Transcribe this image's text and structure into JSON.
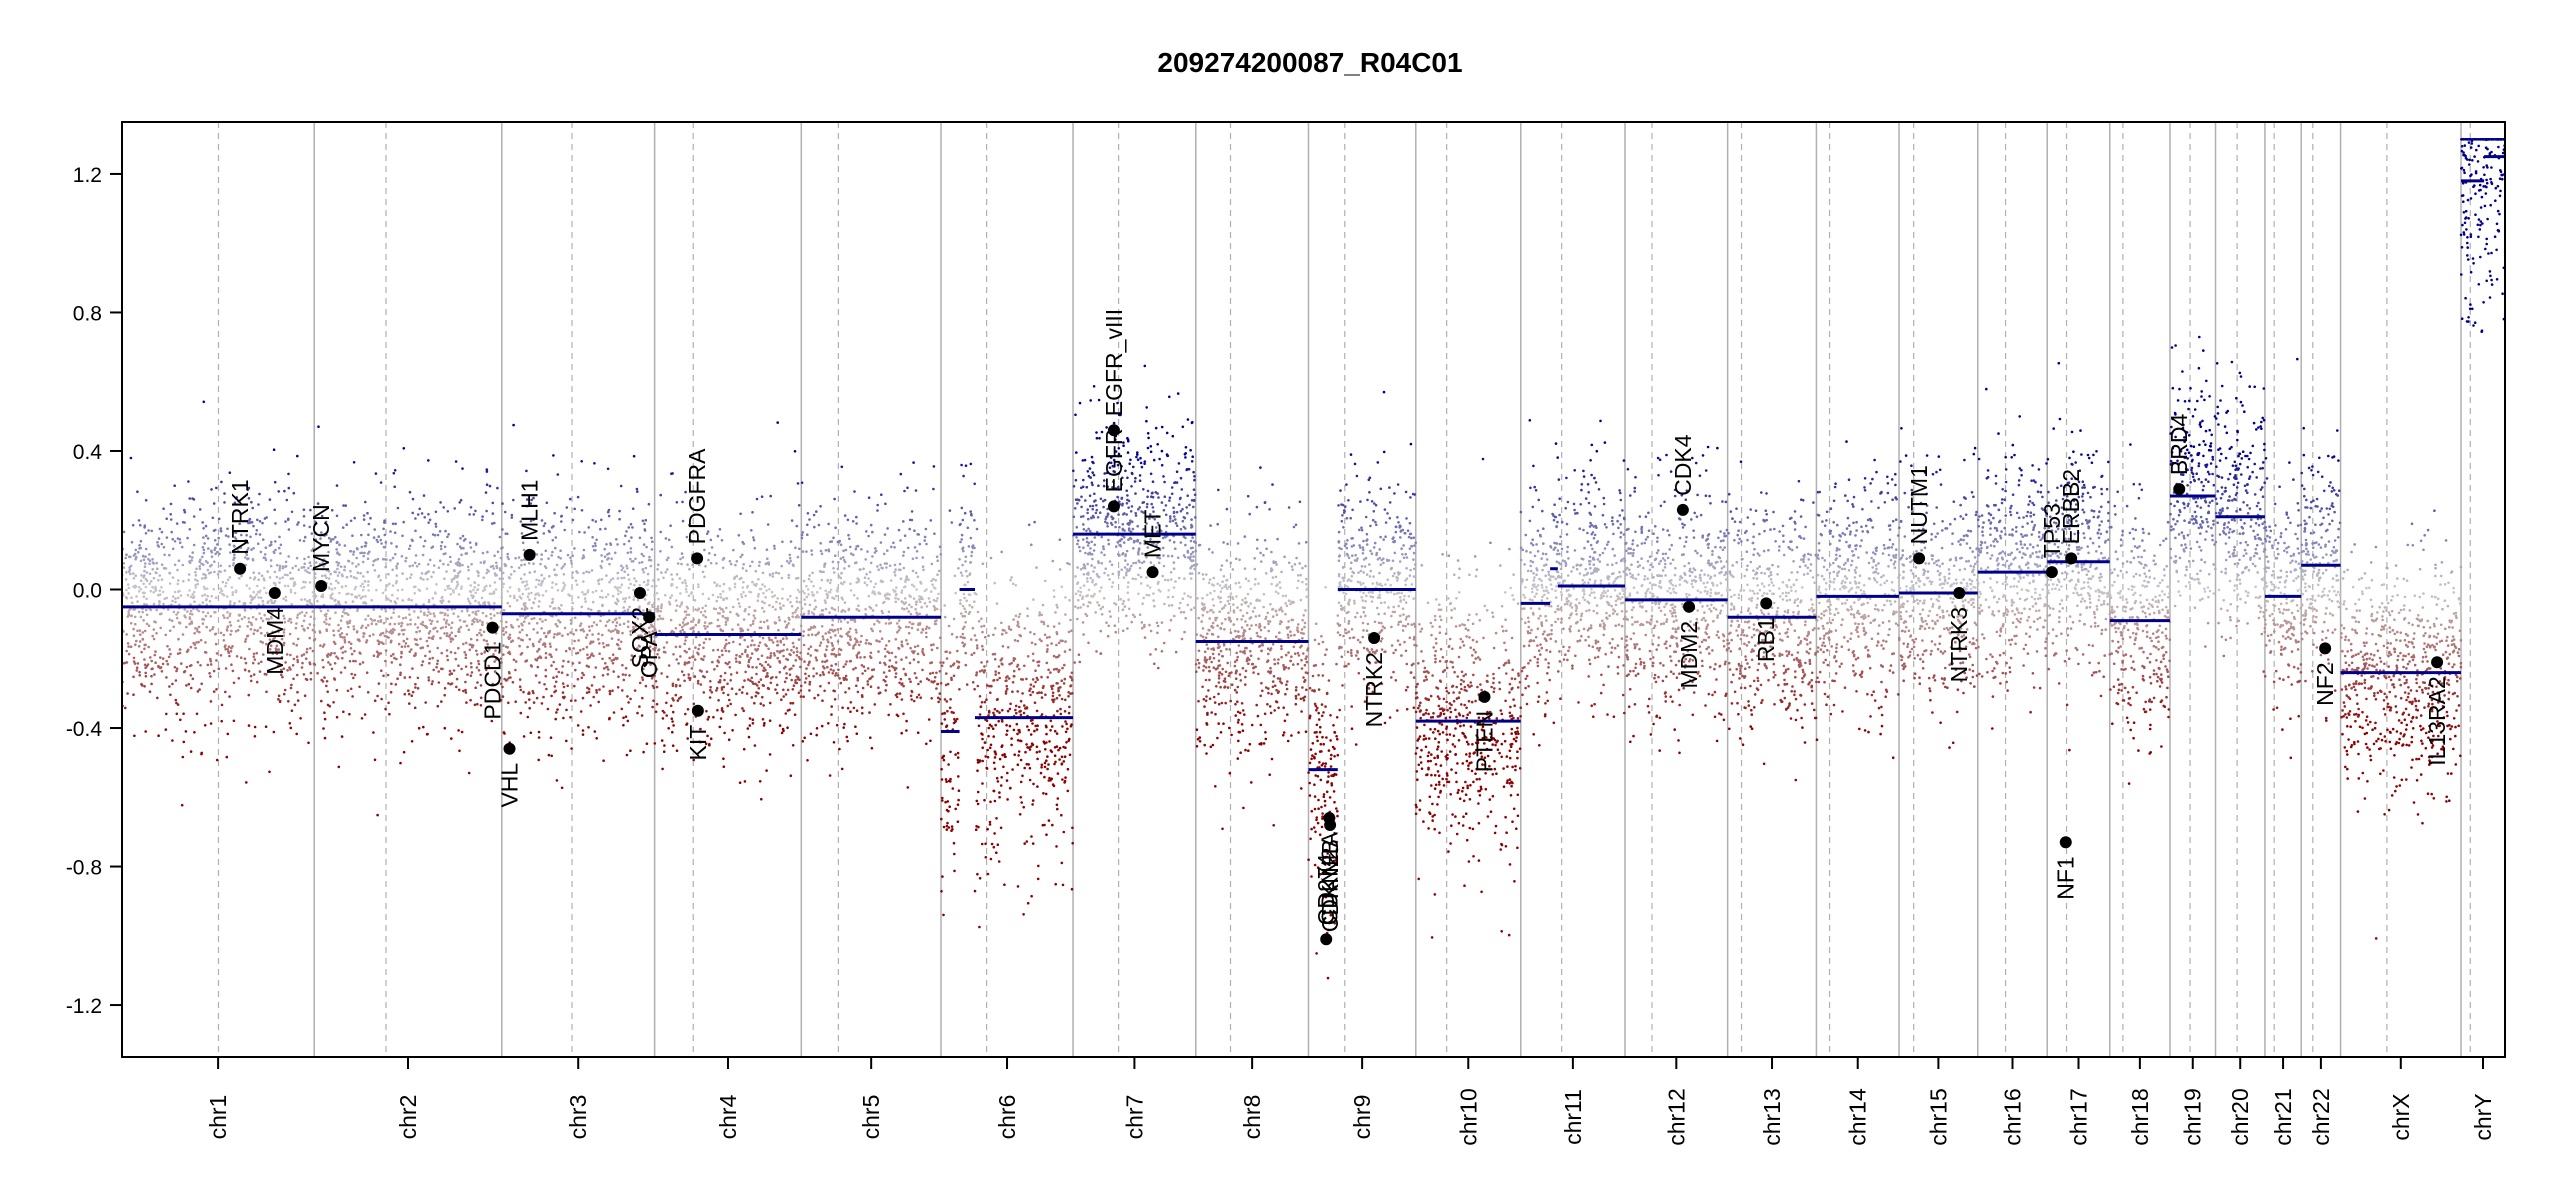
{
  "chart_data": {
    "type": "scatter",
    "title": "209274200087_R04C01",
    "xlabel": "",
    "ylabel": "",
    "ylim": [
      -1.35,
      1.35
    ],
    "yticks": [
      -1.2,
      -0.8,
      -0.4,
      0.0,
      0.4,
      0.8,
      1.2
    ],
    "ytick_labels": [
      "-1.2",
      "-0.8",
      "-0.4",
      "0.0",
      "0.4",
      "0.8",
      "1.2"
    ],
    "grid": false,
    "colors": {
      "gain": "#00008b",
      "loss": "#8b0000",
      "neutral": "#bfbfbf",
      "segment": "#00008b",
      "boundary": "#b0b0b0",
      "centromere": "#b0b0b0",
      "gene_marker": "#000000",
      "axis": "#000000"
    },
    "chromosomes": [
      {
        "name": "chr1",
        "start": 0,
        "end": 249.0,
        "centromere": 125.0
      },
      {
        "name": "chr2",
        "start": 249.0,
        "end": 492.0,
        "centromere": 342.0
      },
      {
        "name": "chr3",
        "start": 492.0,
        "end": 690.0,
        "centromere": 583.0
      },
      {
        "name": "chr4",
        "start": 690.0,
        "end": 880.0,
        "centromere": 740.0
      },
      {
        "name": "chr5",
        "start": 880.0,
        "end": 1061.0,
        "centromere": 928.0
      },
      {
        "name": "chr6",
        "start": 1061.0,
        "end": 1232.0,
        "centromere": 1120.0
      },
      {
        "name": "chr7",
        "start": 1232.0,
        "end": 1391.0,
        "centromere": 1291.0
      },
      {
        "name": "chr8",
        "start": 1391.0,
        "end": 1537.0,
        "centromere": 1436.0
      },
      {
        "name": "chr9",
        "start": 1537.0,
        "end": 1676.0,
        "centromere": 1584.0
      },
      {
        "name": "chr10",
        "start": 1676.0,
        "end": 1812.0,
        "centromere": 1716.0
      },
      {
        "name": "chr11",
        "start": 1812.0,
        "end": 1947.0,
        "centromere": 1865.0
      },
      {
        "name": "chr12",
        "start": 1947.0,
        "end": 2080.0,
        "centromere": 1982.0
      },
      {
        "name": "chr13",
        "start": 2080.0,
        "end": 2195.0,
        "centromere": 2098.0
      },
      {
        "name": "chr14",
        "start": 2195.0,
        "end": 2302.0,
        "centromere": 2212.0
      },
      {
        "name": "chr15",
        "start": 2302.0,
        "end": 2404.0,
        "centromere": 2321.0
      },
      {
        "name": "chr16",
        "start": 2404.0,
        "end": 2494.0,
        "centromere": 2440.0
      },
      {
        "name": "chr17",
        "start": 2494.0,
        "end": 2575.0,
        "centromere": 2519.0
      },
      {
        "name": "chr18",
        "start": 2575.0,
        "end": 2653.0,
        "centromere": 2592.0
      },
      {
        "name": "chr19",
        "start": 2653.0,
        "end": 2712.0,
        "centromere": 2679.0
      },
      {
        "name": "chr20",
        "start": 2712.0,
        "end": 2776.0,
        "centromere": 2740.0
      },
      {
        "name": "chr21",
        "start": 2776.0,
        "end": 2823.0,
        "centromere": 2788.0
      },
      {
        "name": "chr22",
        "start": 2823.0,
        "end": 2874.0,
        "centromere": 2838.0
      },
      {
        "name": "chrX",
        "start": 2874.0,
        "end": 3030.0,
        "centromere": 2934.0
      },
      {
        "name": "chrY",
        "start": 3030.0,
        "end": 3087.0,
        "centromere": 3042.0
      }
    ],
    "segments": [
      {
        "chr": "chr1",
        "x0": 0,
        "x1": 249,
        "value": -0.05
      },
      {
        "chr": "chr2",
        "x0": 249,
        "x1": 492,
        "value": -0.05
      },
      {
        "chr": "chr3",
        "x0": 492,
        "x1": 690,
        "value": -0.07
      },
      {
        "chr": "chr4",
        "x0": 690,
        "x1": 880,
        "value": -0.13
      },
      {
        "chr": "chr5",
        "x0": 880,
        "x1": 1061,
        "value": -0.08
      },
      {
        "chr": "chr6",
        "x0": 1061,
        "x1": 1085,
        "value": -0.41
      },
      {
        "chr": "chr6",
        "x0": 1085,
        "x1": 1105,
        "value": 0.0
      },
      {
        "chr": "chr6",
        "x0": 1105,
        "x1": 1232,
        "value": -0.37
      },
      {
        "chr": "chr7",
        "x0": 1232,
        "x1": 1391,
        "value": 0.16
      },
      {
        "chr": "chr8",
        "x0": 1391,
        "x1": 1537,
        "value": -0.15
      },
      {
        "chr": "chr9",
        "x0": 1537,
        "x1": 1575,
        "value": -0.52
      },
      {
        "chr": "chr9",
        "x0": 1575,
        "x1": 1676,
        "value": 0.0
      },
      {
        "chr": "chr10",
        "x0": 1676,
        "x1": 1812,
        "value": -0.38
      },
      {
        "chr": "chr11",
        "x0": 1812,
        "x1": 1850,
        "value": -0.04
      },
      {
        "chr": "chr11",
        "x0": 1850,
        "x1": 1860,
        "value": 0.06
      },
      {
        "chr": "chr11",
        "x0": 1860,
        "x1": 1947,
        "value": 0.01
      },
      {
        "chr": "chr12",
        "x0": 1947,
        "x1": 2080,
        "value": -0.03
      },
      {
        "chr": "chr13",
        "x0": 2080,
        "x1": 2195,
        "value": -0.08
      },
      {
        "chr": "chr14",
        "x0": 2195,
        "x1": 2302,
        "value": -0.02
      },
      {
        "chr": "chr15",
        "x0": 2302,
        "x1": 2404,
        "value": -0.01
      },
      {
        "chr": "chr16",
        "x0": 2404,
        "x1": 2494,
        "value": 0.05
      },
      {
        "chr": "chr17",
        "x0": 2494,
        "x1": 2575,
        "value": 0.08
      },
      {
        "chr": "chr18",
        "x0": 2575,
        "x1": 2653,
        "value": -0.09
      },
      {
        "chr": "chr19",
        "x0": 2653,
        "x1": 2712,
        "value": 0.27
      },
      {
        "chr": "chr20",
        "x0": 2712,
        "x1": 2776,
        "value": 0.21
      },
      {
        "chr": "chr21",
        "x0": 2776,
        "x1": 2823,
        "value": -0.02
      },
      {
        "chr": "chr22",
        "x0": 2823,
        "x1": 2874,
        "value": 0.07
      },
      {
        "chr": "chrX",
        "x0": 2874,
        "x1": 3030,
        "value": -0.24
      },
      {
        "chr": "chrY",
        "x0": 3030,
        "x1": 3060,
        "value": 1.18
      },
      {
        "chr": "chrY",
        "x0": 3060,
        "x1": 3087,
        "value": 1.25
      }
    ],
    "genes": [
      {
        "name": "NTRK1",
        "x": 153,
        "y": 0.06,
        "label_pos": "above"
      },
      {
        "name": "MDM4",
        "x": 198,
        "y": -0.01,
        "label_pos": "below"
      },
      {
        "name": "MYCN",
        "x": 258,
        "y": 0.01,
        "label_pos": "above"
      },
      {
        "name": "PDCD1",
        "x": 480,
        "y": -0.11,
        "label_pos": "below"
      },
      {
        "name": "VHL",
        "x": 502,
        "y": -0.46,
        "label_pos": "below"
      },
      {
        "name": "MLH1",
        "x": 528,
        "y": 0.1,
        "label_pos": "above"
      },
      {
        "name": "SOX2",
        "x": 671,
        "y": -0.01,
        "label_pos": "below"
      },
      {
        "name": "OPA",
        "x": 683,
        "y": -0.08,
        "label_pos": "below"
      },
      {
        "name": "PDGFRA",
        "x": 745,
        "y": 0.09,
        "label_pos": "above"
      },
      {
        "name": "KIT",
        "x": 746,
        "y": -0.35,
        "label_pos": "below"
      },
      {
        "name": "EGFR",
        "x": 1285,
        "y": 0.24,
        "label_pos": "above"
      },
      {
        "name": "EGFR_vIII",
        "x": 1285,
        "y": 0.46,
        "label_pos": "above"
      },
      {
        "name": "MET",
        "x": 1335,
        "y": 0.05,
        "label_pos": "above"
      },
      {
        "name": "CDKN2A",
        "x": 1564,
        "y": -0.66,
        "label_pos": "below"
      },
      {
        "name": "CDKN2B",
        "x": 1565,
        "y": -0.68,
        "label_pos": "below"
      },
      {
        "name": "CD274",
        "x": 1560,
        "y": -1.01,
        "label_pos": "above"
      },
      {
        "name": "NTRK2",
        "x": 1622,
        "y": -0.14,
        "label_pos": "below"
      },
      {
        "name": "PTEN",
        "x": 1765,
        "y": -0.31,
        "label_pos": "below"
      },
      {
        "name": "CDK4",
        "x": 2022,
        "y": 0.23,
        "label_pos": "above"
      },
      {
        "name": "MDM2",
        "x": 2030,
        "y": -0.05,
        "label_pos": "below"
      },
      {
        "name": "RB1",
        "x": 2130,
        "y": -0.04,
        "label_pos": "below"
      },
      {
        "name": "NUTM1",
        "x": 2328,
        "y": 0.09,
        "label_pos": "above"
      },
      {
        "name": "NTRK3",
        "x": 2380,
        "y": -0.01,
        "label_pos": "below"
      },
      {
        "name": "TP53",
        "x": 2500,
        "y": 0.05,
        "label_pos": "above"
      },
      {
        "name": "ERBB2",
        "x": 2525,
        "y": 0.09,
        "label_pos": "above"
      },
      {
        "name": "NF1",
        "x": 2518,
        "y": -0.73,
        "label_pos": "below"
      },
      {
        "name": "BRD4",
        "x": 2665,
        "y": 0.29,
        "label_pos": "above"
      },
      {
        "name": "NF2",
        "x": 2854,
        "y": -0.17,
        "label_pos": "below"
      },
      {
        "name": "IL13RA2",
        "x": 2999,
        "y": -0.21,
        "label_pos": "below"
      }
    ]
  }
}
